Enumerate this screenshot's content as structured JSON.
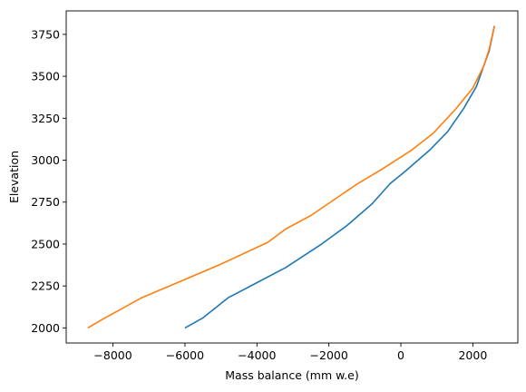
{
  "chart_data": {
    "type": "line",
    "title": "",
    "xlabel": "Mass balance (mm w.e)",
    "ylabel": "Elevation",
    "xlim": [
      -9300,
      3250
    ],
    "ylim": [
      1910,
      3890
    ],
    "xticks": [
      -8000,
      -6000,
      -4000,
      -2000,
      0,
      2000
    ],
    "yticks": [
      2000,
      2250,
      2500,
      2750,
      3000,
      3250,
      3500,
      3750
    ],
    "grid": false,
    "legend": "none",
    "series": [
      {
        "color": "#1f77b4",
        "points": [
          [
            -6000,
            2000
          ],
          [
            -5500,
            2060
          ],
          [
            -4800,
            2180
          ],
          [
            -4000,
            2270
          ],
          [
            -3200,
            2360
          ],
          [
            -2200,
            2500
          ],
          [
            -1500,
            2610
          ],
          [
            -800,
            2740
          ],
          [
            -300,
            2860
          ],
          [
            100,
            2930
          ],
          [
            800,
            3060
          ],
          [
            1300,
            3170
          ],
          [
            1750,
            3310
          ],
          [
            2100,
            3440
          ],
          [
            2300,
            3560
          ],
          [
            2450,
            3650
          ],
          [
            2600,
            3800
          ]
        ]
      },
      {
        "color": "#ff7f0e",
        "points": [
          [
            -8700,
            2000
          ],
          [
            -8300,
            2050
          ],
          [
            -7200,
            2180
          ],
          [
            -6100,
            2280
          ],
          [
            -5000,
            2380
          ],
          [
            -3700,
            2510
          ],
          [
            -3200,
            2590
          ],
          [
            -2500,
            2670
          ],
          [
            -1200,
            2860
          ],
          [
            -500,
            2950
          ],
          [
            300,
            3060
          ],
          [
            900,
            3160
          ],
          [
            1500,
            3300
          ],
          [
            2000,
            3430
          ],
          [
            2300,
            3560
          ],
          [
            2450,
            3660
          ],
          [
            2600,
            3800
          ]
        ]
      }
    ]
  }
}
